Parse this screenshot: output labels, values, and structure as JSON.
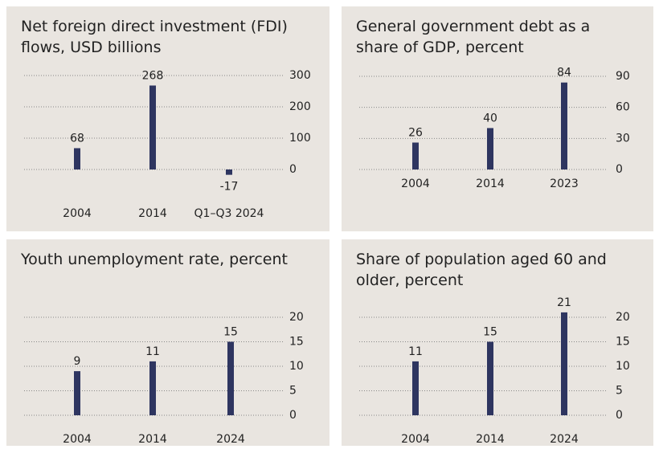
{
  "chart_data": [
    {
      "type": "bar",
      "title": "Net foreign direct investment (FDI) flows, USD billions",
      "categories": [
        "2004",
        "2014",
        "Q1–Q3 2024"
      ],
      "values": [
        68,
        268,
        -17
      ],
      "color": "#2e3560",
      "ylim": [
        -50,
        300
      ],
      "yticks": [
        0,
        100,
        200,
        300
      ],
      "grid": true
    },
    {
      "type": "bar",
      "title": "General government debt as a share of GDP, percent",
      "categories": [
        "2004",
        "2014",
        "2023"
      ],
      "values": [
        26,
        40,
        84
      ],
      "color": "#2e3560",
      "ylim": [
        0,
        90
      ],
      "yticks": [
        0,
        30,
        60,
        90
      ],
      "grid": true
    },
    {
      "type": "bar",
      "title": "Youth unemployment rate, percent",
      "categories": [
        "2004",
        "2014",
        "2024"
      ],
      "values": [
        9,
        11,
        15
      ],
      "color": "#2e3560",
      "ylim": [
        0,
        20
      ],
      "yticks": [
        0,
        5,
        10,
        15,
        20
      ],
      "grid": true
    },
    {
      "type": "bar",
      "title": "Share of population aged 60 and older, percent",
      "categories": [
        "2004",
        "2014",
        "2024"
      ],
      "values": [
        11,
        15,
        21
      ],
      "color": "#2e3560",
      "ylim": [
        0,
        20
      ],
      "yticks": [
        0,
        5,
        10,
        15,
        20
      ],
      "grid": true
    }
  ]
}
